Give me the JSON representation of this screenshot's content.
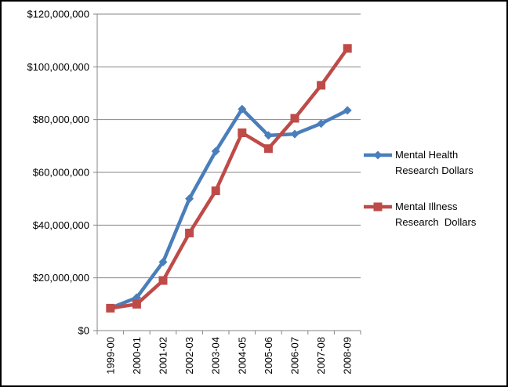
{
  "chart_data": {
    "type": "line",
    "title": "",
    "xlabel": "",
    "ylabel": "",
    "categories": [
      "1999-00",
      "2000-01",
      "2001-02",
      "2002-03",
      "2003-04",
      "2004-05",
      "2005-06",
      "2006-07",
      "2007-08",
      "2008-09"
    ],
    "ylim": [
      0,
      120000000
    ],
    "yticks": [
      0,
      20000000,
      40000000,
      60000000,
      80000000,
      100000000,
      120000000
    ],
    "ytick_labels": [
      "$0",
      "$20,000,000",
      "$40,000,000",
      "$60,000,000",
      "$80,000,000",
      "$100,000,000",
      "$120,000,000"
    ],
    "grid": true,
    "legend_position": "right",
    "series": [
      {
        "name": "Mental Health Research Dollars",
        "legend_lines": [
          "Mental Health",
          "Research Dollars"
        ],
        "color": "#4A7EBB",
        "marker": "diamond",
        "values": [
          8500000,
          12500000,
          26000000,
          50000000,
          68000000,
          84000000,
          74000000,
          74500000,
          78500000,
          83500000
        ]
      },
      {
        "name": "Mental Illness Research Dollars",
        "legend_lines": [
          "Mental Illness",
          "Research  Dollars"
        ],
        "color": "#BE4B48",
        "marker": "square",
        "values": [
          8500000,
          10000000,
          19000000,
          37000000,
          53000000,
          75000000,
          69000000,
          80500000,
          93000000,
          107000000
        ]
      }
    ]
  }
}
